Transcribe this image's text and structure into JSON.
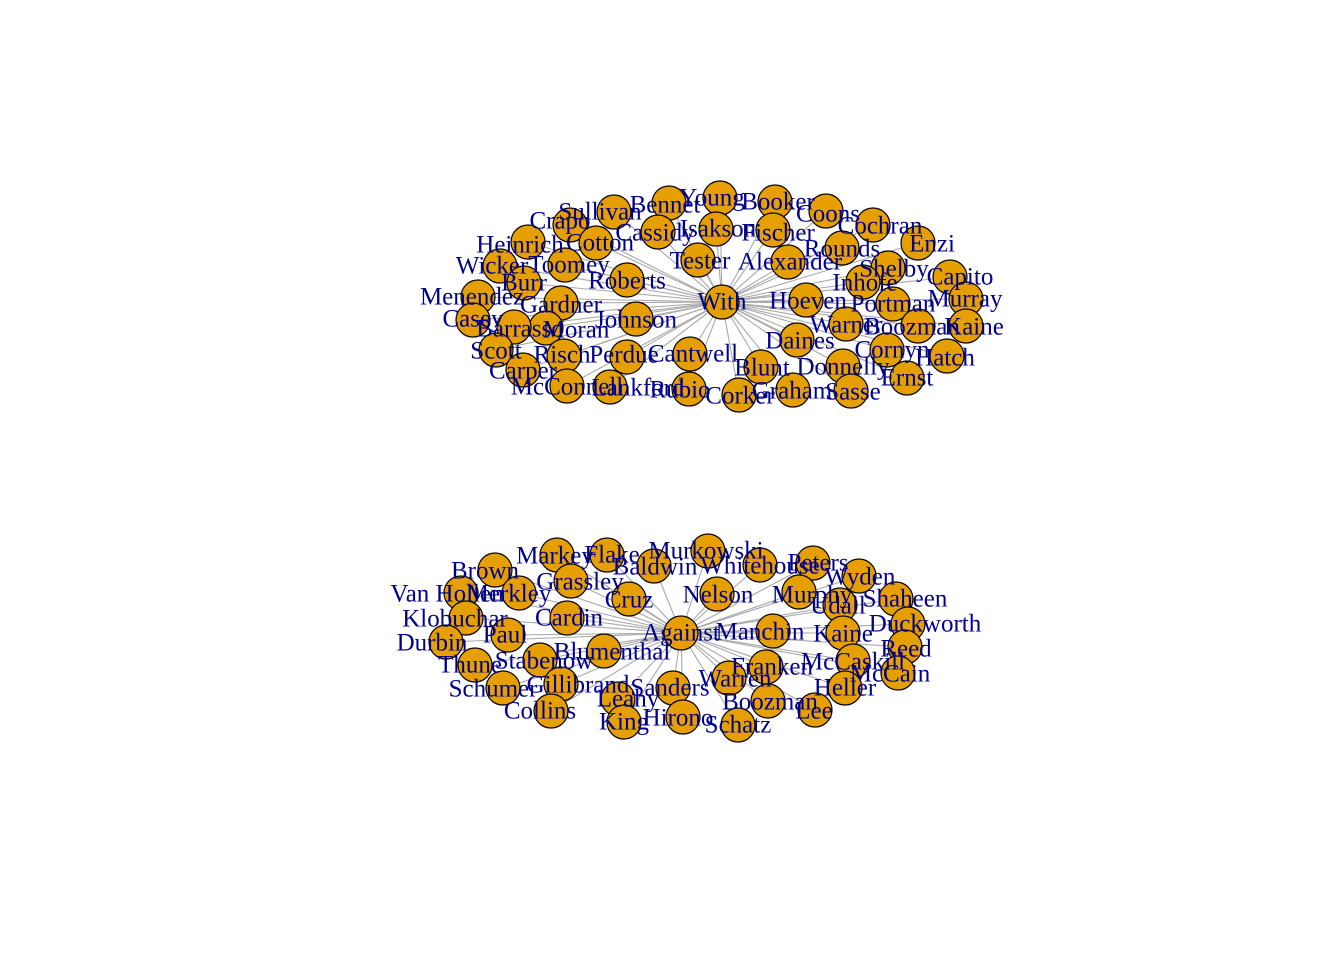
{
  "colors": {
    "node_fill": "#e69f00",
    "node_stroke": "#000000",
    "edge": "#a9a9a9",
    "label": "#00008b",
    "background": "#ffffff"
  },
  "networks": [
    {
      "hub": "With",
      "nodes": [
        "With",
        "Young",
        "Isakson",
        "Bennet",
        "Booker",
        "Coons",
        "Fischer",
        "Sullivan",
        "Cassidy",
        "Crapo",
        "Cochran",
        "Enzi",
        "Tester",
        "Alexander",
        "Rounds",
        "Heinrich",
        "Cotton",
        "Shelby",
        "Toomey",
        "Capito",
        "Wicker",
        "Roberts",
        "Inhofe",
        "Burr",
        "Murray",
        "Menendez",
        "Gardner",
        "Hoeven",
        "Portman",
        "Casey",
        "Moran",
        "Johnson",
        "Warner",
        "Barrasso",
        "Hatch",
        "Kaine",
        "Lankford",
        "Scott",
        "Risch",
        "Perdue",
        "Cantwell",
        "Daines",
        "Cornyn",
        "Carper",
        "Blunt",
        "Donnelly",
        "Ernst",
        "McConnell",
        "Boozman",
        "Rubio",
        "Corker",
        "Graham",
        "Sasse"
      ]
    },
    {
      "hub": "Against",
      "nodes": [
        "Against",
        "Markey",
        "Flake",
        "Murkowski",
        "Baldwin",
        "Whitehouse",
        "Peters",
        "Wyden",
        "Brown",
        "Grassley",
        "Merkley",
        "Van Hollen",
        "Cardin",
        "Cruz",
        "Nelson",
        "Murphy",
        "Udall",
        "Shaheen",
        "Klobuchar",
        "Paul",
        "Manchin",
        "Kaine",
        "Duckworth",
        "Durbin",
        "Blumenthal",
        "Stabenow",
        "Franken",
        "McCaskill",
        "Reed",
        "Thune",
        "Gillibrand",
        "Sanders",
        "Warren",
        "Heller",
        "McCain",
        "Schumer",
        "Leahy",
        "Collins",
        "Boozman",
        "Lee",
        "King",
        "Hirono",
        "Schatz"
      ]
    }
  ]
}
